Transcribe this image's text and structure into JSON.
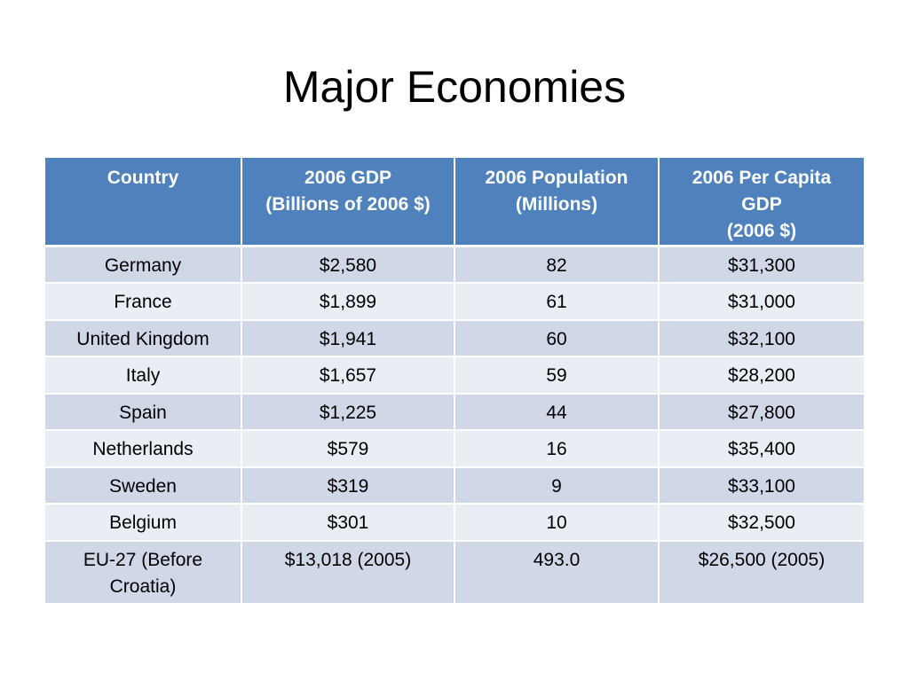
{
  "slide": {
    "title": "Major Economies"
  },
  "table": {
    "headers": [
      "Country",
      "2006 GDP\n(Billions of 2006 $)",
      "2006 Population\n(Millions)",
      "2006 Per Capita\nGDP\n(2006 $)"
    ],
    "rows": [
      [
        "Germany",
        "$2,580",
        "82",
        "$31,300"
      ],
      [
        "France",
        "$1,899",
        "61",
        "$31,000"
      ],
      [
        "United Kingdom",
        "$1,941",
        "60",
        "$32,100"
      ],
      [
        "Italy",
        "$1,657",
        "59",
        "$28,200"
      ],
      [
        "Spain",
        "$1,225",
        "44",
        "$27,800"
      ],
      [
        "Netherlands",
        "$579",
        "16",
        "$35,400"
      ],
      [
        "Sweden",
        "$319",
        "9",
        "$33,100"
      ],
      [
        "Belgium",
        "$301",
        "10",
        "$32,500"
      ],
      [
        "EU-27 (Before Croatia)",
        "$13,018 (2005)",
        "493.0",
        "$26,500 (2005)"
      ]
    ]
  },
  "colors": {
    "header_bg": "#4f81bd",
    "row_odd_bg": "#d0d8e8",
    "row_even_bg": "#e9edf4"
  }
}
